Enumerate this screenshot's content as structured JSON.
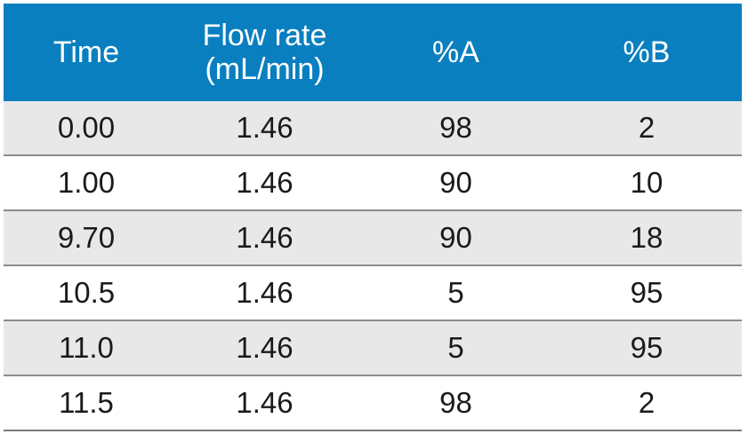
{
  "table": {
    "headers": [
      {
        "lines": [
          "Time"
        ]
      },
      {
        "lines": [
          "Flow rate",
          "(mL/min)"
        ]
      },
      {
        "lines": [
          "%A"
        ]
      },
      {
        "lines": [
          "%B"
        ]
      }
    ],
    "rows": [
      [
        "0.00",
        "1.46",
        "98",
        "2"
      ],
      [
        "1.00",
        "1.46",
        "90",
        "10"
      ],
      [
        "9.70",
        "1.46",
        "90",
        "18"
      ],
      [
        "10.5",
        "1.46",
        "5",
        "95"
      ],
      [
        "11.0",
        "1.46",
        "5",
        "95"
      ],
      [
        "11.5",
        "1.46",
        "98",
        "2"
      ]
    ]
  },
  "colors": {
    "header_bg": "#0a7fbf",
    "header_text": "#ffffff",
    "row_shaded": "#e9e8e8",
    "row_plain": "#ffffff",
    "rule": "#8c8c8c"
  }
}
